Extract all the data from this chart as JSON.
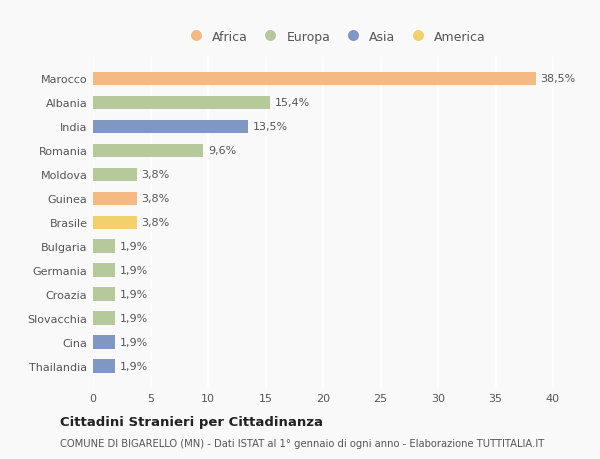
{
  "countries": [
    "Marocco",
    "Albania",
    "India",
    "Romania",
    "Moldova",
    "Guinea",
    "Brasile",
    "Bulgaria",
    "Germania",
    "Croazia",
    "Slovacchia",
    "Cina",
    "Thailandia"
  ],
  "values": [
    38.5,
    15.4,
    13.5,
    9.6,
    3.8,
    3.8,
    3.8,
    1.9,
    1.9,
    1.9,
    1.9,
    1.9,
    1.9
  ],
  "labels": [
    "38,5%",
    "15,4%",
    "13,5%",
    "9,6%",
    "3,8%",
    "3,8%",
    "3,8%",
    "1,9%",
    "1,9%",
    "1,9%",
    "1,9%",
    "1,9%",
    "1,9%"
  ],
  "continents": [
    "Africa",
    "Europa",
    "Asia",
    "Europa",
    "Europa",
    "Africa",
    "America",
    "Europa",
    "Europa",
    "Europa",
    "Europa",
    "Asia",
    "Asia"
  ],
  "colors": {
    "Africa": "#F5B984",
    "Europa": "#B5C99A",
    "Asia": "#8097C4",
    "America": "#F2D06B"
  },
  "legend_order": [
    "Africa",
    "Europa",
    "Asia",
    "America"
  ],
  "xlim": [
    0,
    42
  ],
  "xticks": [
    0,
    5,
    10,
    15,
    20,
    25,
    30,
    35,
    40
  ],
  "title": "Cittadini Stranieri per Cittadinanza",
  "subtitle": "COMUNE DI BIGARELLO (MN) - Dati ISTAT al 1° gennaio di ogni anno - Elaborazione TUTTITALIA.IT",
  "background_color": "#f9f9f9",
  "bar_height": 0.55,
  "label_fontsize": 8,
  "tick_fontsize": 8,
  "legend_fontsize": 9
}
